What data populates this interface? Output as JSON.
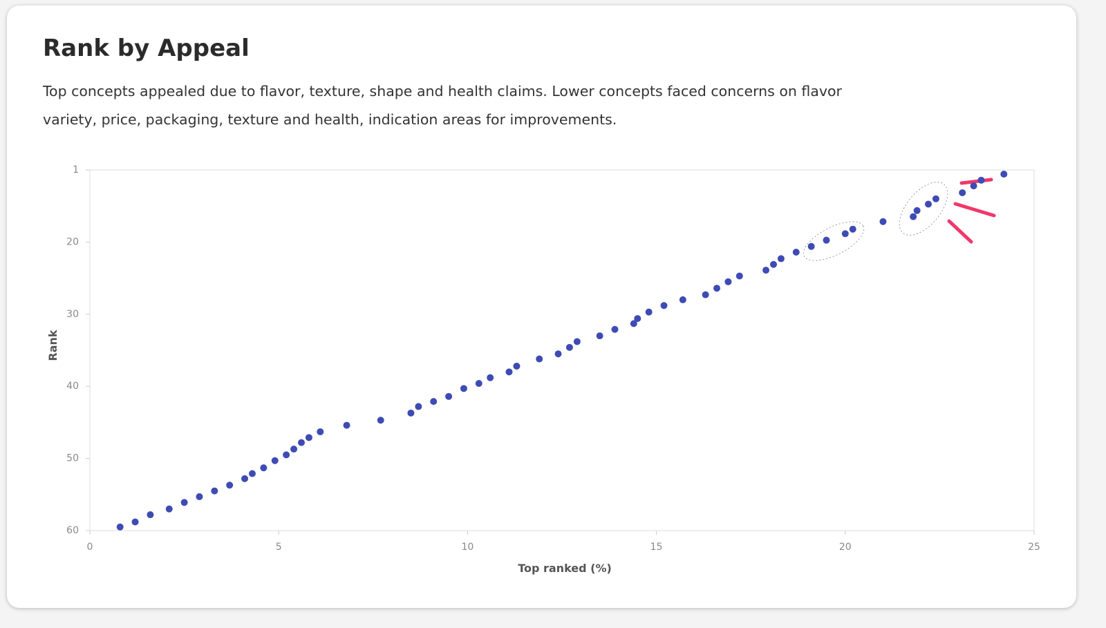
{
  "chart_data": {
    "type": "scatter",
    "title": "Rank by Appeal",
    "subtitle": "Top concepts appealed due to flavor, texture, shape and health claims. Lower concepts faced concerns on flavor variety, price, packaging, texture and health, indication areas for improvements.",
    "x_label": "Top ranked (%)",
    "y_label": "Rank",
    "xlim": [
      0,
      25
    ],
    "xticks": [
      0,
      5,
      10,
      15,
      20,
      25
    ],
    "ylim": [
      60,
      1
    ],
    "yticks": [
      1,
      20,
      30,
      40,
      50,
      60
    ],
    "y_inverted": true,
    "y_tick_spacing": "even",
    "color": "#3e4bb5",
    "x": [
      24.2,
      23.6,
      23.4,
      23.1,
      22.4,
      22.2,
      21.9,
      21.8,
      21.0,
      20.2,
      20.0,
      19.5,
      19.1,
      18.7,
      18.3,
      18.1,
      17.9,
      17.2,
      16.9,
      16.6,
      16.3,
      15.7,
      15.2,
      14.8,
      14.5,
      14.4,
      13.9,
      13.5,
      12.9,
      12.7,
      12.4,
      11.9,
      11.3,
      11.1,
      10.6,
      10.3,
      9.9,
      9.5,
      9.1,
      8.7,
      8.5,
      7.7,
      6.8,
      6.1,
      5.8,
      5.6,
      5.4,
      5.2,
      4.9,
      4.6,
      4.3,
      4.1,
      3.7,
      3.3,
      2.9,
      2.5,
      2.1,
      1.6,
      1.2,
      0.8
    ],
    "values": [
      2.1,
      3.7,
      5.2,
      7.0,
      8.6,
      10.0,
      11.7,
      13.3,
      14.6,
      16.6,
      17.8,
      19.5,
      20.6,
      21.4,
      22.3,
      23.1,
      23.9,
      24.7,
      25.5,
      26.4,
      27.3,
      28.0,
      28.8,
      29.7,
      30.6,
      31.3,
      32.1,
      33.0,
      33.8,
      34.6,
      35.5,
      36.2,
      37.2,
      38.0,
      38.8,
      39.6,
      40.3,
      41.4,
      42.1,
      42.8,
      43.7,
      44.7,
      45.4,
      46.3,
      47.1,
      47.8,
      48.7,
      49.5,
      50.3,
      51.3,
      52.1,
      52.8,
      53.7,
      54.5,
      55.3,
      56.1,
      57.0,
      57.8,
      58.8,
      59.5
    ]
  }
}
